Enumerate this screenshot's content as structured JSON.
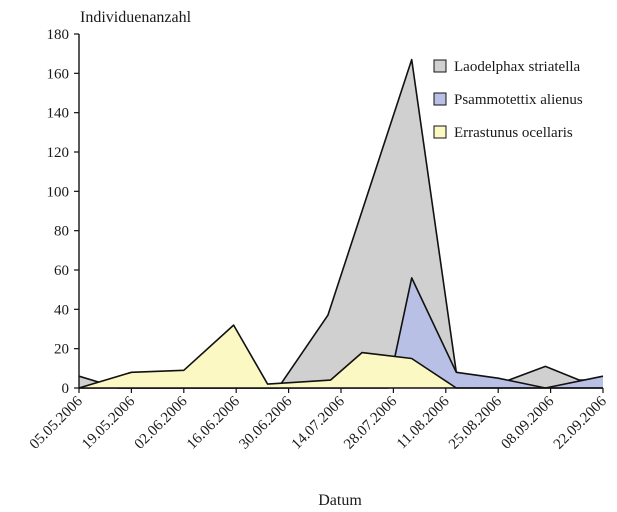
{
  "chart_data": {
    "type": "area",
    "title": "",
    "ylabel": "Individuenanzahl",
    "xlabel": "Datum",
    "ylim": [
      0,
      180
    ],
    "yticks": [
      0,
      20,
      40,
      60,
      80,
      100,
      120,
      140,
      160,
      180
    ],
    "x_tick_labels": [
      "05.05.2006",
      "19.05.2006",
      "02.06.2006",
      "16.06.2006",
      "30.06.2006",
      "14.07.2006",
      "28.07.2006",
      "11.08.2006",
      "25.08.2006",
      "08.09.2006",
      "22.09.2006"
    ],
    "grid": false,
    "legend_position": "top-right",
    "series": [
      {
        "name": "Laodelphax striatella",
        "color": "#d0d0d0",
        "points": [
          [
            0.0,
            6
          ],
          [
            0.75,
            0
          ],
          [
            3.6,
            0
          ],
          [
            3.8,
            0
          ],
          [
            4.75,
            37
          ],
          [
            6.35,
            167
          ],
          [
            7.2,
            8
          ],
          [
            8.1,
            3
          ],
          [
            8.9,
            11
          ],
          [
            9.55,
            4
          ],
          [
            10.0,
            4
          ]
        ]
      },
      {
        "name": "Psammotettix alienus",
        "color": "#b9c0e6",
        "points": [
          [
            0.0,
            0
          ],
          [
            5.9,
            0
          ],
          [
            6.35,
            56
          ],
          [
            7.2,
            8
          ],
          [
            8.0,
            5
          ],
          [
            8.9,
            0
          ],
          [
            10.0,
            6
          ]
        ]
      },
      {
        "name": "Errastunus ocellaris",
        "color": "#fbf8c4",
        "points": [
          [
            0.0,
            0
          ],
          [
            1.0,
            8
          ],
          [
            2.0,
            9
          ],
          [
            2.95,
            32
          ],
          [
            3.6,
            2
          ],
          [
            4.8,
            4
          ],
          [
            5.4,
            18
          ],
          [
            6.35,
            15
          ],
          [
            7.2,
            0
          ],
          [
            10.0,
            0
          ]
        ]
      }
    ]
  }
}
